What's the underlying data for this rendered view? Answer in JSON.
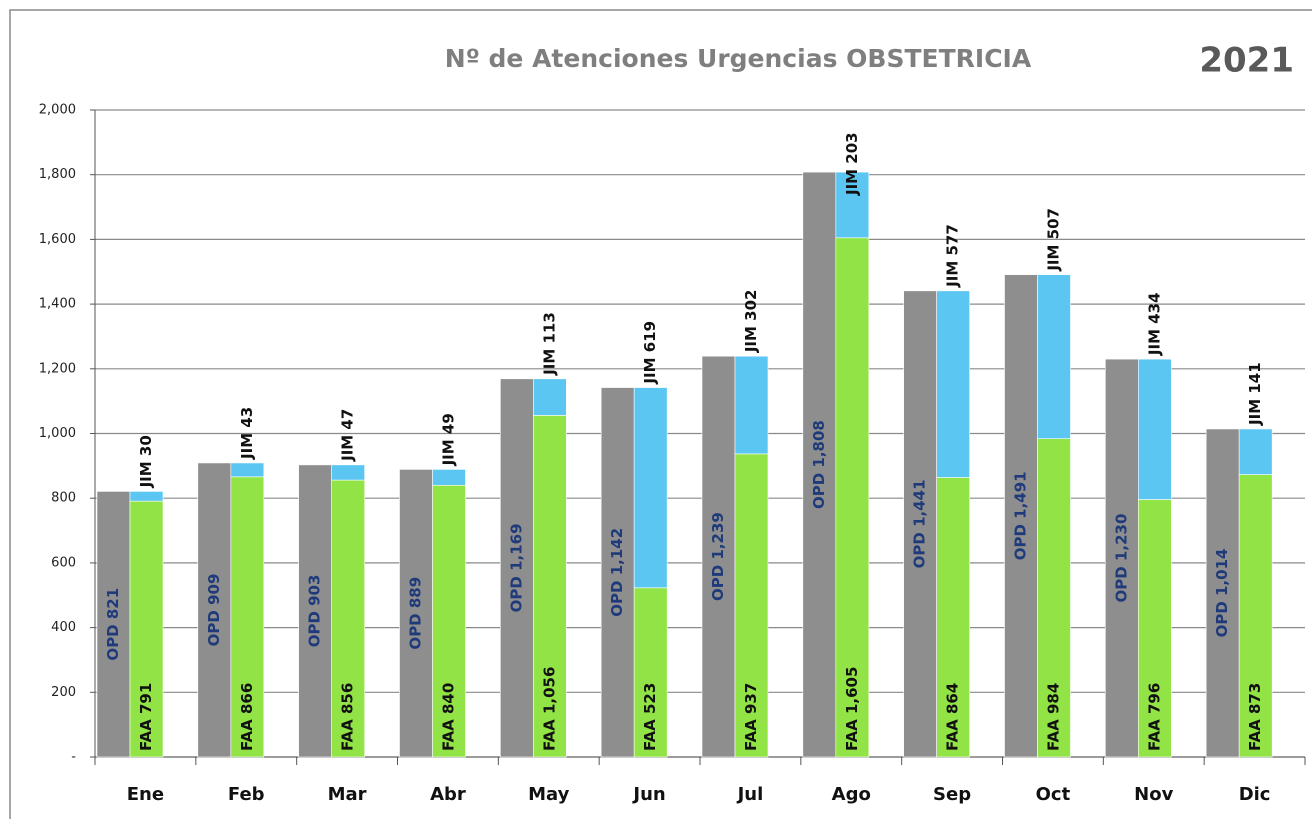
{
  "chart_data": {
    "type": "grouped_stacked_bar",
    "title": "Nº de Atenciones Urgencias OBSTETRICIA",
    "subtitle": "2021",
    "categories": [
      "Ene",
      "Feb",
      "Mar",
      "Abr",
      "May",
      "Jun",
      "Jul",
      "Ago",
      "Sep",
      "Oct",
      "Nov",
      "Dic"
    ],
    "series": [
      {
        "name": "OPD",
        "color": "#8e8e8e",
        "stack": "a",
        "label_color": "#1f3a7a",
        "values": [
          821,
          909,
          903,
          889,
          1169,
          1142,
          1239,
          1808,
          1441,
          1491,
          1230,
          1014
        ],
        "value_labels": [
          "OPD  821",
          "OPD  909",
          "OPD  903",
          "OPD  889",
          "OPD  1,169",
          "OPD  1,142",
          "OPD  1,239",
          "OPD  1,808",
          "OPD  1,441",
          "OPD  1,491",
          "OPD  1,230",
          "OPD  1,014"
        ]
      },
      {
        "name": "FAA",
        "color": "#92e346",
        "stack": "b",
        "label_color": "#111111",
        "values": [
          791,
          866,
          856,
          840,
          1056,
          523,
          937,
          1605,
          864,
          984,
          796,
          873
        ],
        "value_labels": [
          "FAA  791",
          "FAA  866",
          "FAA  856",
          "FAA  840",
          "FAA  1,056",
          "FAA  523",
          "FAA  937",
          "FAA  1,605",
          "FAA  864",
          "FAA  984",
          "FAA  796",
          "FAA  873"
        ]
      },
      {
        "name": "JIM",
        "color": "#5cc6f2",
        "stack": "b",
        "label_color": "#111111",
        "values": [
          30,
          43,
          47,
          49,
          113,
          619,
          302,
          203,
          577,
          507,
          434,
          141
        ],
        "value_labels": [
          "JIM  30",
          "JIM  43",
          "JIM  47",
          "JIM  49",
          "JIM  113",
          "JIM  619",
          "JIM  302",
          "JIM  203",
          "JIM  577",
          "JIM  507",
          "JIM  434",
          "JIM  141"
        ]
      }
    ],
    "ylim": [
      0,
      2000
    ],
    "yticks": [
      {
        "value": 0,
        "label": "-"
      },
      200,
      400,
      600,
      800,
      {
        "value": 1000,
        "label": "1,000"
      },
      {
        "value": 1200,
        "label": "1,200"
      },
      {
        "value": 1400,
        "label": "1,400"
      },
      {
        "value": 1600,
        "label": "1,600"
      },
      {
        "value": 1800,
        "label": "1,800"
      },
      {
        "value": 2000,
        "label": "2,000"
      }
    ],
    "grid": true
  }
}
